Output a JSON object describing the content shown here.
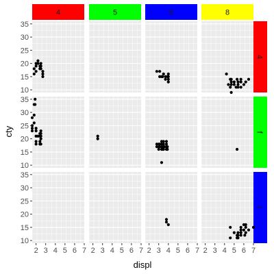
{
  "chart_data": {
    "type": "scatter",
    "title": "",
    "xlabel": "displ",
    "ylabel": "cty",
    "facet_cols": [
      {
        "label": "4",
        "color": "#ff0000"
      },
      {
        "label": "5",
        "color": "#00ff00"
      },
      {
        "label": "6",
        "color": "#0000ff"
      },
      {
        "label": "8",
        "color": "#ffff00"
      }
    ],
    "facet_rows": [
      {
        "label": "4",
        "color": "#ff0000"
      },
      {
        "label": "f",
        "color": "#00ff00"
      },
      {
        "label": "r",
        "color": "#0000ff"
      }
    ],
    "xlim": [
      1.6,
      7.0
    ],
    "ylim": [
      9,
      36
    ],
    "x_ticks": [
      2,
      3,
      4,
      5,
      6,
      7
    ],
    "y_ticks": [
      10,
      15,
      20,
      25,
      30,
      35
    ],
    "grid": true,
    "panel_background": "#ebebeb",
    "point_color": "#000000",
    "panels": [
      {
        "row": 0,
        "col": 0,
        "points": [
          [
            1.8,
            18
          ],
          [
            1.8,
            16
          ],
          [
            2.0,
            20
          ],
          [
            2.0,
            19
          ],
          [
            2.2,
            21
          ],
          [
            2.2,
            20
          ],
          [
            2.4,
            19
          ],
          [
            2.4,
            18
          ],
          [
            2.5,
            20
          ],
          [
            2.5,
            18
          ],
          [
            2.7,
            17
          ],
          [
            2.7,
            16
          ],
          [
            2.7,
            15
          ],
          [
            2.0,
            17
          ],
          [
            2.5,
            19
          ]
        ]
      },
      {
        "row": 0,
        "col": 1,
        "points": []
      },
      {
        "row": 0,
        "col": 2,
        "points": [
          [
            2.8,
            17
          ],
          [
            3.1,
            17
          ],
          [
            3.1,
            15
          ],
          [
            3.4,
            15
          ],
          [
            3.7,
            15
          ],
          [
            3.7,
            14
          ],
          [
            4.0,
            16
          ],
          [
            4.0,
            15
          ],
          [
            4.0,
            14
          ],
          [
            3.5,
            16
          ],
          [
            3.3,
            15
          ],
          [
            3.9,
            15
          ],
          [
            4.0,
            13
          ]
        ]
      },
      {
        "row": 0,
        "col": 3,
        "points": [
          [
            4.2,
            16
          ],
          [
            4.6,
            14
          ],
          [
            4.7,
            14
          ],
          [
            4.7,
            13
          ],
          [
            4.7,
            12
          ],
          [
            4.4,
            12
          ],
          [
            4.6,
            11
          ],
          [
            5.0,
            13
          ],
          [
            5.2,
            11
          ],
          [
            5.3,
            14
          ],
          [
            5.4,
            13
          ],
          [
            5.4,
            12
          ],
          [
            5.7,
            13
          ],
          [
            5.7,
            11
          ],
          [
            6.0,
            12
          ],
          [
            6.2,
            13
          ],
          [
            6.5,
            14
          ],
          [
            4.7,
            9
          ],
          [
            5.7,
            14
          ],
          [
            5.4,
            11
          ],
          [
            5.0,
            12
          ]
        ]
      },
      {
        "row": 1,
        "col": 0,
        "points": [
          [
            1.6,
            28
          ],
          [
            1.6,
            24
          ],
          [
            1.6,
            23
          ],
          [
            1.6,
            25
          ],
          [
            1.8,
            26
          ],
          [
            1.8,
            29
          ],
          [
            1.8,
            33
          ],
          [
            1.9,
            35
          ],
          [
            1.9,
            33
          ],
          [
            2.0,
            24
          ],
          [
            2.0,
            23
          ],
          [
            2.0,
            21
          ],
          [
            2.0,
            19
          ],
          [
            2.0,
            18
          ],
          [
            2.4,
            22
          ],
          [
            2.4,
            21
          ],
          [
            2.4,
            19
          ],
          [
            2.4,
            18
          ],
          [
            2.5,
            23
          ],
          [
            2.5,
            22
          ],
          [
            2.5,
            21
          ],
          [
            2.5,
            20
          ],
          [
            2.5,
            18
          ],
          [
            2.2,
            21
          ]
        ]
      },
      {
        "row": 1,
        "col": 1,
        "points": [
          [
            2.5,
            21
          ],
          [
            2.5,
            20
          ]
        ]
      },
      {
        "row": 1,
        "col": 2,
        "points": [
          [
            2.8,
            18
          ],
          [
            2.8,
            17
          ],
          [
            3.0,
            18
          ],
          [
            3.0,
            17
          ],
          [
            3.1,
            17
          ],
          [
            3.1,
            18
          ],
          [
            3.3,
            17
          ],
          [
            3.3,
            18
          ],
          [
            3.3,
            19
          ],
          [
            3.5,
            17
          ],
          [
            3.5,
            18
          ],
          [
            3.5,
            19
          ],
          [
            3.6,
            17
          ],
          [
            3.8,
            18
          ],
          [
            3.8,
            17
          ],
          [
            3.8,
            16
          ],
          [
            3.9,
            16
          ],
          [
            3.9,
            17
          ],
          [
            3.3,
            16
          ],
          [
            3.4,
            17
          ],
          [
            3.4,
            16
          ],
          [
            3.0,
            16
          ],
          [
            3.3,
            11
          ],
          [
            3.5,
            16
          ],
          [
            3.8,
            19
          ]
        ]
      },
      {
        "row": 1,
        "col": 3,
        "points": [
          [
            5.3,
            16
          ]
        ]
      },
      {
        "row": 2,
        "col": 0,
        "points": []
      },
      {
        "row": 2,
        "col": 1,
        "points": []
      },
      {
        "row": 2,
        "col": 2,
        "points": [
          [
            3.8,
            18
          ],
          [
            3.8,
            17
          ],
          [
            4.0,
            16
          ]
        ]
      },
      {
        "row": 2,
        "col": 3,
        "points": [
          [
            4.6,
            15
          ],
          [
            4.6,
            11
          ],
          [
            5.0,
            13
          ],
          [
            5.4,
            13
          ],
          [
            5.4,
            12
          ],
          [
            5.4,
            11
          ],
          [
            5.7,
            15
          ],
          [
            5.7,
            14
          ],
          [
            5.7,
            13
          ],
          [
            5.7,
            12
          ],
          [
            6.0,
            16
          ],
          [
            6.0,
            14
          ],
          [
            6.2,
            16
          ],
          [
            6.2,
            15
          ],
          [
            6.5,
            14
          ],
          [
            6.2,
            13
          ],
          [
            7.0,
            15
          ],
          [
            6.1,
            12
          ],
          [
            5.3,
            11
          ],
          [
            5.3,
            12
          ]
        ]
      }
    ]
  }
}
